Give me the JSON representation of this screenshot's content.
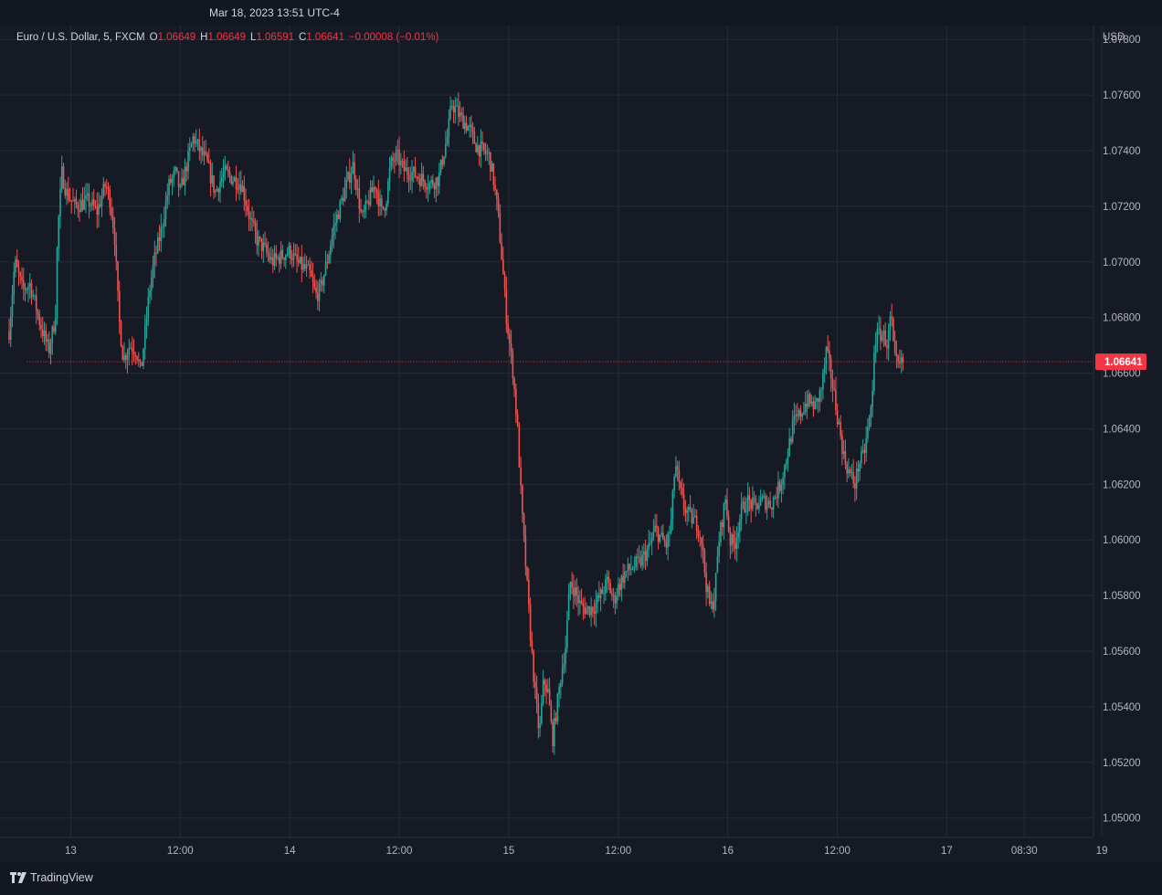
{
  "header": {
    "timestamp": "Mar 18, 2023 13:51 UTC-4"
  },
  "legend": {
    "symbol": "Euro / U.S. Dollar, 5, FXCM",
    "open_label": "O",
    "open": "1.06649",
    "high_label": "H",
    "high": "1.06649",
    "low_label": "L",
    "low": "1.06591",
    "close_label": "C",
    "close": "1.06641",
    "change": "−0.00008 (−0.01%)"
  },
  "brand": {
    "name": "TradingView",
    "logo_icon": "tradingview-logo-icon"
  },
  "colors": {
    "up": "#26a69a",
    "down": "#ef5350",
    "grid": "#262a35",
    "price_line": "#f23645",
    "background": "#161a25"
  },
  "chart_data": {
    "type": "candlestick",
    "currency": "USD",
    "ylim": [
      1.0493,
      1.0785
    ],
    "y_ticks": [
      "1.07800",
      "1.07600",
      "1.07400",
      "1.07200",
      "1.07000",
      "1.06800",
      "1.06600",
      "1.06400",
      "1.06200",
      "1.06000",
      "1.05800",
      "1.05600",
      "1.05400",
      "1.05200",
      "1.05000"
    ],
    "x_ticks": [
      {
        "label": "13",
        "pos": 0.0
      },
      {
        "label": "12:00",
        "pos": 0.5
      },
      {
        "label": "14",
        "pos": 1.0
      },
      {
        "label": "12:00",
        "pos": 1.5
      },
      {
        "label": "15",
        "pos": 2.0
      },
      {
        "label": "12:00",
        "pos": 2.5
      },
      {
        "label": "16",
        "pos": 3.0
      },
      {
        "label": "12:00",
        "pos": 3.5
      },
      {
        "label": "17",
        "pos": 4.0
      },
      {
        "label": "08:30",
        "pos": 4.354
      },
      {
        "label": "19",
        "pos": 4.708
      }
    ],
    "x_range": [
      -0.281,
      4.67
    ],
    "last_price": "1.06641",
    "last_price_value": 1.06641,
    "path_points": [
      [
        -0.281,
        1.0675
      ],
      [
        -0.255,
        1.07
      ],
      [
        -0.22,
        1.069
      ],
      [
        -0.185,
        1.0692
      ],
      [
        -0.14,
        1.0678
      ],
      [
        -0.1,
        1.0668
      ],
      [
        -0.07,
        1.068
      ],
      [
        -0.06,
        1.071
      ],
      [
        -0.04,
        1.0732
      ],
      [
        -0.02,
        1.0725
      ],
      [
        0.02,
        1.072
      ],
      [
        0.08,
        1.0722
      ],
      [
        0.12,
        1.0718
      ],
      [
        0.16,
        1.0728
      ],
      [
        0.18,
        1.0722
      ],
      [
        0.2,
        1.071
      ],
      [
        0.22,
        1.068
      ],
      [
        0.24,
        1.0665
      ],
      [
        0.27,
        1.067
      ],
      [
        0.3,
        1.0668
      ],
      [
        0.32,
        1.066
      ],
      [
        0.34,
        1.0675
      ],
      [
        0.36,
        1.069
      ],
      [
        0.38,
        1.07
      ],
      [
        0.41,
        1.071
      ],
      [
        0.45,
        1.0728
      ],
      [
        0.48,
        1.0732
      ],
      [
        0.5,
        1.0725
      ],
      [
        0.53,
        1.0735
      ],
      [
        0.56,
        1.0745
      ],
      [
        0.59,
        1.074
      ],
      [
        0.62,
        1.0736
      ],
      [
        0.66,
        1.0725
      ],
      [
        0.7,
        1.0732
      ],
      [
        0.74,
        1.073
      ],
      [
        0.78,
        1.0728
      ],
      [
        0.82,
        1.0715
      ],
      [
        0.85,
        1.0708
      ],
      [
        0.88,
        1.0705
      ],
      [
        0.92,
        1.07
      ],
      [
        0.96,
        1.0702
      ],
      [
        1.0,
        1.0704
      ],
      [
        1.03,
        1.07
      ],
      [
        1.06,
        1.0698
      ],
      [
        1.09,
        1.0696
      ],
      [
        1.12,
        1.0688
      ],
      [
        1.14,
        1.069
      ],
      [
        1.17,
        1.07
      ],
      [
        1.2,
        1.0712
      ],
      [
        1.23,
        1.072
      ],
      [
        1.26,
        1.0728
      ],
      [
        1.29,
        1.0735
      ],
      [
        1.31,
        1.0725
      ],
      [
        1.33,
        1.0715
      ],
      [
        1.36,
        1.0722
      ],
      [
        1.39,
        1.0728
      ],
      [
        1.42,
        1.0718
      ],
      [
        1.44,
        1.0722
      ],
      [
        1.46,
        1.0735
      ],
      [
        1.49,
        1.0738
      ],
      [
        1.52,
        1.0733
      ],
      [
        1.56,
        1.0732
      ],
      [
        1.6,
        1.073
      ],
      [
        1.64,
        1.0728
      ],
      [
        1.68,
        1.073
      ],
      [
        1.7,
        1.0738
      ],
      [
        1.72,
        1.0745
      ],
      [
        1.74,
        1.0757
      ],
      [
        1.78,
        1.0752
      ],
      [
        1.82,
        1.0748
      ],
      [
        1.85,
        1.0742
      ],
      [
        1.88,
        1.074
      ],
      [
        1.91,
        1.0738
      ],
      [
        1.93,
        1.073
      ],
      [
        1.95,
        1.0718
      ],
      [
        1.97,
        1.07
      ],
      [
        1.99,
        1.068
      ],
      [
        2.02,
        1.066
      ],
      [
        2.04,
        1.064
      ],
      [
        2.06,
        1.061
      ],
      [
        2.08,
        1.0588
      ],
      [
        2.1,
        1.0565
      ],
      [
        2.12,
        1.0545
      ],
      [
        2.14,
        1.053
      ],
      [
        2.16,
        1.055
      ],
      [
        2.18,
        1.0545
      ],
      [
        2.2,
        1.0528
      ],
      [
        2.22,
        1.054
      ],
      [
        2.24,
        1.0552
      ],
      [
        2.26,
        1.0562
      ],
      [
        2.28,
        1.0585
      ],
      [
        2.3,
        1.0582
      ],
      [
        2.33,
        1.0576
      ],
      [
        2.36,
        1.0575
      ],
      [
        2.39,
        1.0576
      ],
      [
        2.42,
        1.058
      ],
      [
        2.45,
        1.0585
      ],
      [
        2.48,
        1.0578
      ],
      [
        2.5,
        1.0583
      ],
      [
        2.53,
        1.0588
      ],
      [
        2.56,
        1.059
      ],
      [
        2.6,
        1.0592
      ],
      [
        2.64,
        1.0597
      ],
      [
        2.67,
        1.0604
      ],
      [
        2.7,
        1.06
      ],
      [
        2.72,
        1.0598
      ],
      [
        2.74,
        1.0605
      ],
      [
        2.76,
        1.0628
      ],
      [
        2.78,
        1.0618
      ],
      [
        2.8,
        1.0612
      ],
      [
        2.83,
        1.0608
      ],
      [
        2.86,
        1.0606
      ],
      [
        2.88,
        1.06
      ],
      [
        2.9,
        1.0585
      ],
      [
        2.92,
        1.0575
      ],
      [
        2.94,
        1.058
      ],
      [
        2.96,
        1.06
      ],
      [
        2.99,
        1.0615
      ],
      [
        3.01,
        1.06
      ],
      [
        3.03,
        1.0598
      ],
      [
        3.06,
        1.061
      ],
      [
        3.09,
        1.0614
      ],
      [
        3.12,
        1.0612
      ],
      [
        3.16,
        1.0614
      ],
      [
        3.2,
        1.0613
      ],
      [
        3.24,
        1.062
      ],
      [
        3.27,
        1.063
      ],
      [
        3.3,
        1.0642
      ],
      [
        3.33,
        1.0645
      ],
      [
        3.36,
        1.065
      ],
      [
        3.4,
        1.0648
      ],
      [
        3.43,
        1.0655
      ],
      [
        3.45,
        1.0668
      ],
      [
        3.47,
        1.066
      ],
      [
        3.49,
        1.065
      ],
      [
        3.51,
        1.064
      ],
      [
        3.53,
        1.063
      ],
      [
        3.55,
        1.0625
      ],
      [
        3.58,
        1.062
      ],
      [
        3.6,
        1.0628
      ],
      [
        3.62,
        1.063
      ],
      [
        3.64,
        1.064
      ],
      [
        3.66,
        1.065
      ],
      [
        3.67,
        1.0672
      ],
      [
        3.69,
        1.0674
      ],
      [
        3.71,
        1.0674
      ],
      [
        3.73,
        1.067
      ],
      [
        3.745,
        1.0682
      ],
      [
        3.76,
        1.0665
      ],
      [
        3.78,
        1.0662
      ],
      [
        3.8,
        1.0664
      ]
    ],
    "price_line_start_x": -0.2
  }
}
